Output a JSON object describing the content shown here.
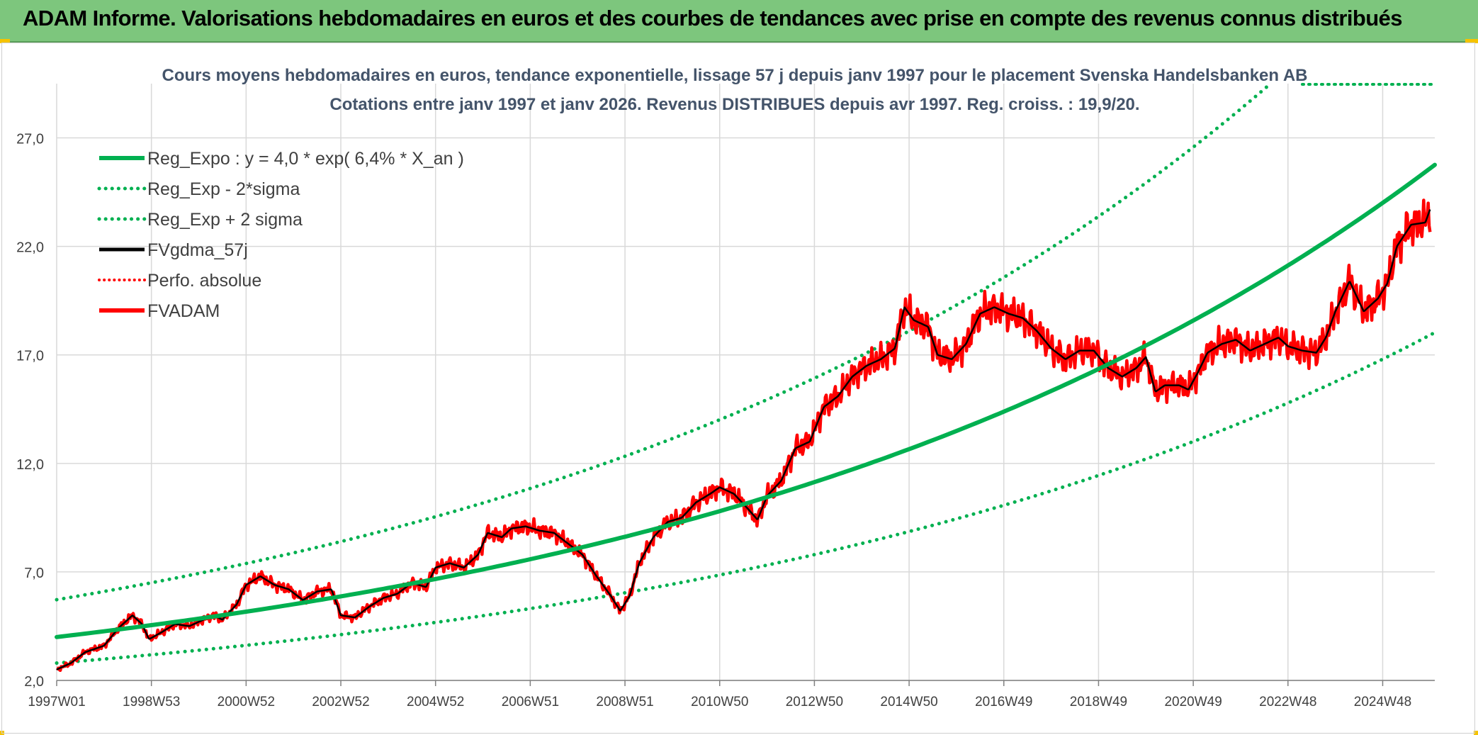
{
  "banner": {
    "title": "ADAM Informe. Valorisations hebdomadaires en euros et des courbes de tendances avec prise en compte des revenus connus distribués"
  },
  "colors": {
    "banner_bg": "#7dc67d",
    "trend": "#00b050",
    "price": "#ff0000",
    "smoothed": "#000000",
    "grid": "#d9d9d9",
    "title_text": "#44546a",
    "accent": "#f5c300"
  },
  "chart_data": {
    "type": "line",
    "title": "Cours moyens hebdomadaires en euros, tendance exponentielle, lissage 57 j depuis janv 1997 pour le placement Svenska Handelsbanken AB",
    "subtitle": "Cotations entre janv 1997 et janv 2026. Revenus DISTRIBUES depuis avr 1997. Reg. croiss. : 19,9/20.",
    "xlabel": "",
    "ylabel": "",
    "ylim": [
      2.0,
      29.5
    ],
    "xlim": [
      1997.0,
      2026.1
    ],
    "y_ticks": [
      "2,0",
      "7,0",
      "12,0",
      "17,0",
      "22,0",
      "27,0"
    ],
    "x_ticks": [
      "1997W01",
      "1998W53",
      "2000W52",
      "2002W52",
      "2004W52",
      "2006W51",
      "2008W51",
      "2010W50",
      "2012W50",
      "2014W50",
      "2016W49",
      "2018W49",
      "2020W49",
      "2022W48",
      "2024W48"
    ],
    "x_tick_years": [
      1997.0,
      1999.0,
      2001.0,
      2003.0,
      2005.0,
      2007.0,
      2009.0,
      2011.0,
      2013.0,
      2015.0,
      2017.0,
      2019.0,
      2021.0,
      2023.0,
      2025.0
    ],
    "grid": true,
    "legend_position": "top-left",
    "regression": {
      "a": 4.0,
      "rate": 0.064,
      "lower_factor": 0.7,
      "upper_factor": 1.43
    },
    "series": [
      {
        "name": "Reg_Expo : y = 4,0 * exp( 6,4% *  X_an )",
        "style": "solid-thick",
        "color": "#00b050"
      },
      {
        "name": "Reg_Exp - 2*sigma",
        "style": "dotted",
        "color": "#00b050"
      },
      {
        "name": "Reg_Exp + 2 sigma",
        "style": "dotted",
        "color": "#00b050"
      },
      {
        "name": "FVgdma_57j",
        "style": "solid",
        "color": "#000000"
      },
      {
        "name": "Perfo. absolue",
        "style": "dotted-red",
        "color": "#ff0000"
      },
      {
        "name": "FVADAM",
        "style": "solid-red",
        "color": "#ff0000",
        "x": [
          1997.0,
          1997.3,
          1997.6,
          1998.0,
          1998.3,
          1998.6,
          1998.8,
          1998.95,
          1999.2,
          1999.5,
          1999.8,
          2000.0,
          2000.3,
          2000.5,
          2000.8,
          2001.0,
          2001.3,
          2001.6,
          2001.9,
          2002.2,
          2002.5,
          2002.8,
          2003.0,
          2003.3,
          2003.6,
          2003.9,
          2004.2,
          2004.5,
          2004.8,
          2005.0,
          2005.3,
          2005.6,
          2005.9,
          2006.1,
          2006.4,
          2006.6,
          2006.9,
          2007.2,
          2007.5,
          2007.8,
          2008.1,
          2008.4,
          2008.7,
          2008.9,
          2009.1,
          2009.3,
          2009.6,
          2009.9,
          2010.2,
          2010.5,
          2010.8,
          2011.0,
          2011.3,
          2011.6,
          2011.8,
          2012.0,
          2012.3,
          2012.6,
          2012.9,
          2013.2,
          2013.5,
          2013.8,
          2014.1,
          2014.4,
          2014.7,
          2014.9,
          2015.1,
          2015.4,
          2015.6,
          2015.9,
          2016.2,
          2016.5,
          2016.8,
          2017.1,
          2017.4,
          2017.7,
          2018.0,
          2018.3,
          2018.6,
          2018.9,
          2019.2,
          2019.5,
          2019.8,
          2020.0,
          2020.2,
          2020.4,
          2020.7,
          2020.9,
          2021.1,
          2021.3,
          2021.6,
          2021.9,
          2022.2,
          2022.5,
          2022.8,
          2023.0,
          2023.3,
          2023.6,
          2023.8,
          2024.0,
          2024.3,
          2024.6,
          2024.9,
          2025.1,
          2025.3,
          2025.6,
          2025.9,
          2026.0
        ],
        "values": [
          2.5,
          2.8,
          3.3,
          3.6,
          4.4,
          5.0,
          4.6,
          3.9,
          4.2,
          4.6,
          4.5,
          4.7,
          5.0,
          4.8,
          5.5,
          6.4,
          6.8,
          6.4,
          6.2,
          5.7,
          6.1,
          6.2,
          5.0,
          4.9,
          5.4,
          5.8,
          6.0,
          6.5,
          6.3,
          7.2,
          7.4,
          7.2,
          7.8,
          8.8,
          8.6,
          9.0,
          9.1,
          8.9,
          8.8,
          8.3,
          7.8,
          6.8,
          5.9,
          5.2,
          5.9,
          7.4,
          8.6,
          9.3,
          9.5,
          10.2,
          10.6,
          10.9,
          10.6,
          9.9,
          9.4,
          10.5,
          11.2,
          12.7,
          13.0,
          14.6,
          15.1,
          16.0,
          16.5,
          16.8,
          17.3,
          19.2,
          18.6,
          18.3,
          17.0,
          16.8,
          17.5,
          18.9,
          19.2,
          18.9,
          18.7,
          18.1,
          17.3,
          16.8,
          17.2,
          17.2,
          16.4,
          16.0,
          16.4,
          16.9,
          15.3,
          15.6,
          15.6,
          15.4,
          16.2,
          17.1,
          17.5,
          17.7,
          17.2,
          17.5,
          17.8,
          17.4,
          17.2,
          17.1,
          17.8,
          19.0,
          20.4,
          19.0,
          19.6,
          20.3,
          22.0,
          23.0,
          23.1,
          23.7
        ]
      }
    ]
  }
}
